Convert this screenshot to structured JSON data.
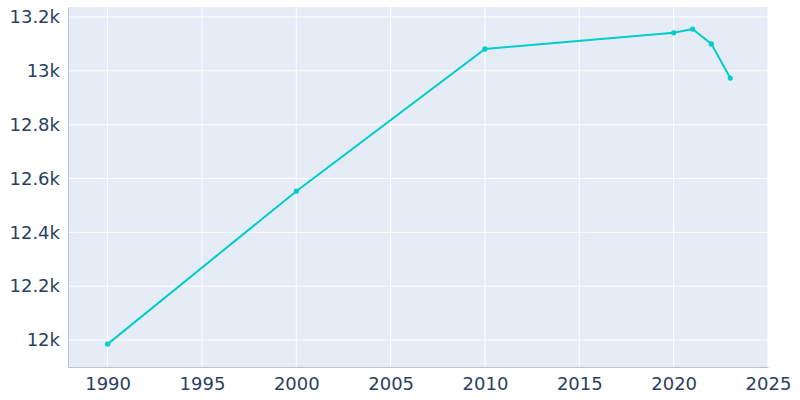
{
  "chart_data": {
    "type": "line",
    "x": [
      1990,
      2000,
      2010,
      2020,
      2021,
      2022,
      2023
    ],
    "values": [
      11985,
      12553,
      13081,
      13141,
      13155,
      13100,
      12973
    ],
    "color": "#00cccc",
    "marker": "circle",
    "xlim": [
      1987.9,
      2025
    ],
    "xticks": [
      1990,
      1995,
      2000,
      2005,
      2010,
      2015,
      2020,
      2025
    ],
    "ylim": [
      11900,
      13237
    ],
    "yticks": [
      {
        "value": 12000,
        "label": "12k"
      },
      {
        "value": 12200,
        "label": "12.2k"
      },
      {
        "value": 12400,
        "label": "12.4k"
      },
      {
        "value": 12600,
        "label": "12.6k"
      },
      {
        "value": 12800,
        "label": "12.8k"
      },
      {
        "value": 13000,
        "label": "13k"
      },
      {
        "value": 13200,
        "label": "13.2k"
      }
    ],
    "grid": true
  }
}
